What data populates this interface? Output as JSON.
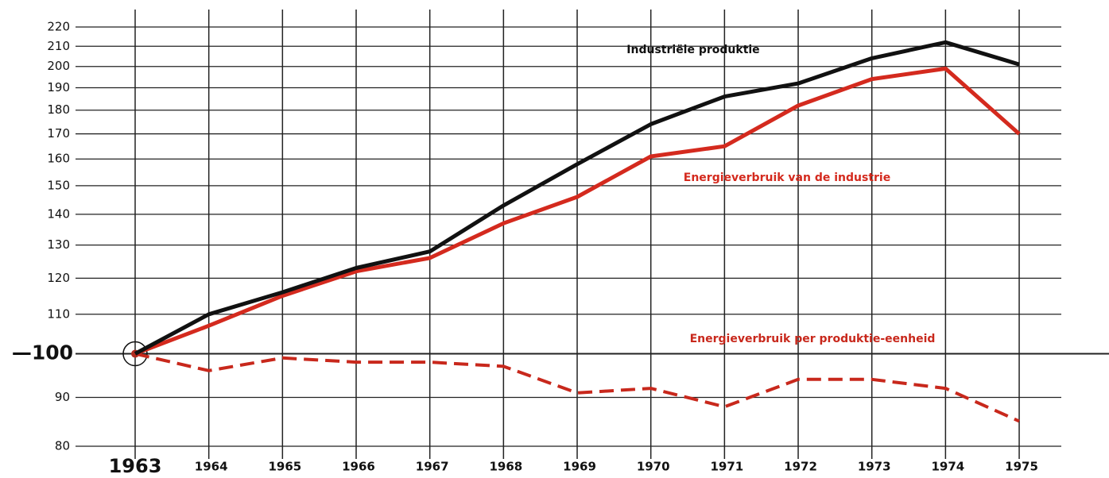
{
  "chart_data": {
    "type": "line",
    "categories": [
      "1963",
      "1964",
      "1965",
      "1966",
      "1967",
      "1968",
      "1969",
      "1970",
      "1971",
      "1972",
      "1973",
      "1974",
      "1975"
    ],
    "series": [
      {
        "name": "Industriële produktie",
        "color": "#111111",
        "style": "solid",
        "values": [
          100,
          110,
          116,
          123,
          128,
          143,
          158,
          174,
          186,
          192,
          204,
          212,
          201
        ]
      },
      {
        "name": "Energieverbruik van de industrie",
        "color": "#d42a1e",
        "style": "solid",
        "values": [
          100,
          107,
          115,
          122,
          126,
          137,
          146,
          161,
          165,
          182,
          194,
          199,
          170
        ]
      },
      {
        "name": "Energieverbruik per produktie-eenheid",
        "color": "#c8281c",
        "style": "dashed",
        "values": [
          100,
          96,
          99,
          98,
          98,
          97,
          91,
          92,
          88,
          94,
          94,
          92,
          85
        ]
      }
    ],
    "ylim": [
      80,
      220
    ],
    "yticks": [
      80,
      90,
      {
        "value": 100,
        "label": "—100"
      },
      110,
      120,
      130,
      140,
      150,
      160,
      170,
      180,
      190,
      200,
      210,
      220
    ],
    "log_y": true,
    "grid": true
  }
}
